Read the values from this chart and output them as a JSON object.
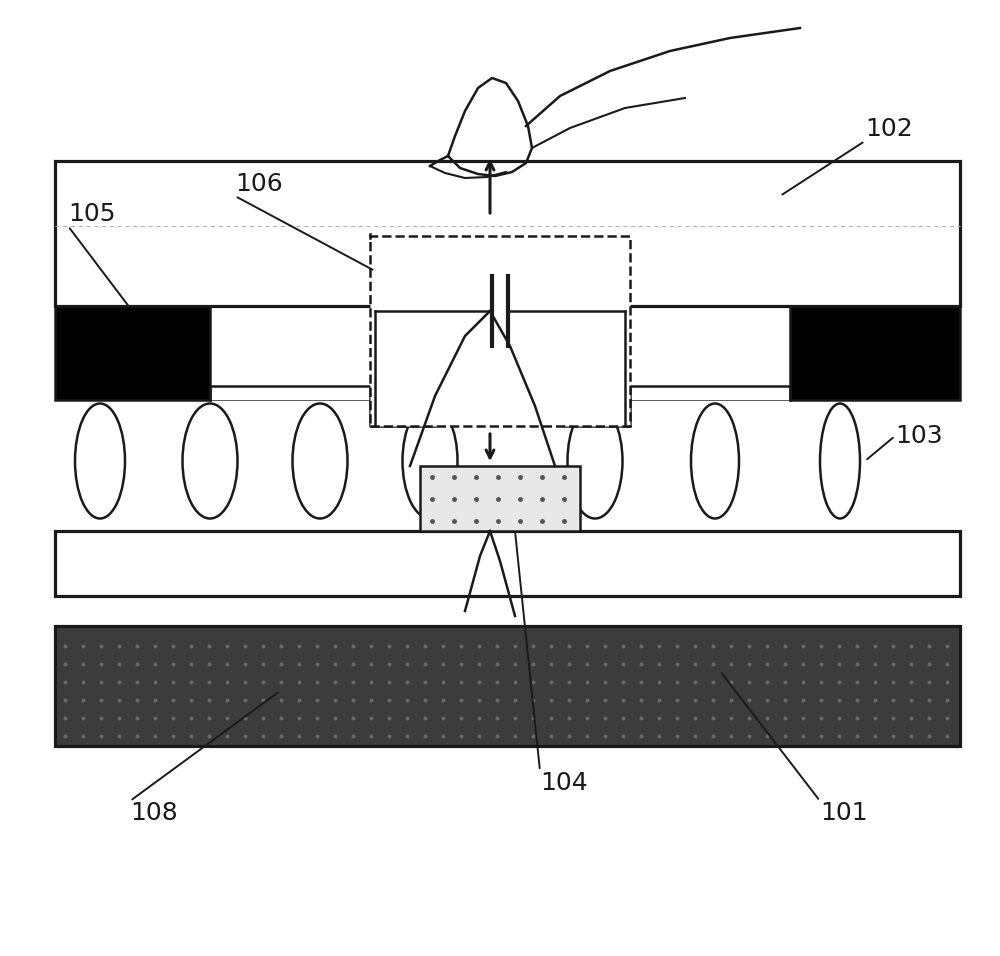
{
  "bg_color": "#ffffff",
  "line_color": "#1a1a1a",
  "black_fill": "#000000",
  "dark_fill": "#404040",
  "label_102": "102",
  "label_103": "103",
  "label_104": "104",
  "label_105": "105",
  "label_106": "106",
  "label_108": "108",
  "label_101": "101",
  "figsize": [
    10.0,
    9.56
  ],
  "label_fontsize": 18,
  "lw": 1.8
}
